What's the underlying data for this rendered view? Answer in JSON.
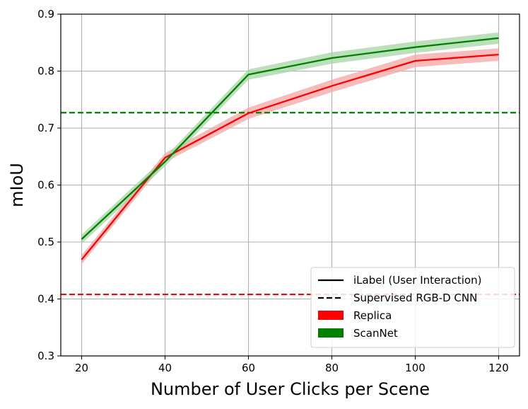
{
  "chart_data": {
    "type": "line",
    "xlabel": "Number of User Clicks per Scene",
    "ylabel": "mIoU",
    "xlim": [
      15,
      125
    ],
    "ylim": [
      0.3,
      0.9
    ],
    "xticks": [
      20,
      40,
      60,
      80,
      100,
      120
    ],
    "yticks": [
      0.3,
      0.4,
      0.5,
      0.6,
      0.7,
      0.8,
      0.9
    ],
    "xtick_labels": [
      "20",
      "40",
      "60",
      "80",
      "100",
      "120"
    ],
    "ytick_labels": [
      "0.3",
      "0.4",
      "0.5",
      "0.6",
      "0.7",
      "0.8",
      "0.9"
    ],
    "grid": true,
    "legend_position": "bottom-right",
    "x": [
      20,
      40,
      60,
      80,
      100,
      120
    ],
    "series": [
      {
        "name": "Replica",
        "color": "#ff0000",
        "band_color": "#f4a6a6",
        "values": [
          0.469,
          0.648,
          0.726,
          0.774,
          0.818,
          0.829
        ],
        "lower": [
          0.461,
          0.64,
          0.716,
          0.763,
          0.807,
          0.818
        ],
        "upper": [
          0.477,
          0.656,
          0.736,
          0.785,
          0.829,
          0.84
        ]
      },
      {
        "name": "ScanNet",
        "color": "#008000",
        "band_color": "#a6d4a6",
        "values": [
          0.505,
          0.641,
          0.794,
          0.823,
          0.842,
          0.858
        ],
        "lower": [
          0.497,
          0.633,
          0.785,
          0.813,
          0.832,
          0.848
        ],
        "upper": [
          0.513,
          0.649,
          0.803,
          0.833,
          0.852,
          0.868
        ]
      }
    ],
    "baselines": [
      {
        "series": "ScanNet",
        "value": 0.727,
        "color": "#008000"
      },
      {
        "series": "Replica",
        "value": 0.408,
        "color": "#ff0000"
      }
    ],
    "legend": {
      "entries": [
        {
          "label": "iLabel (User Interaction)",
          "kind": "solid-line",
          "color": "#000000"
        },
        {
          "label": "Supervised RGB-D CNN",
          "kind": "dashed-line",
          "color": "#000000"
        },
        {
          "label": "Replica",
          "kind": "patch",
          "color": "#ff0000"
        },
        {
          "label": "ScanNet",
          "kind": "patch",
          "color": "#008000"
        }
      ]
    }
  }
}
